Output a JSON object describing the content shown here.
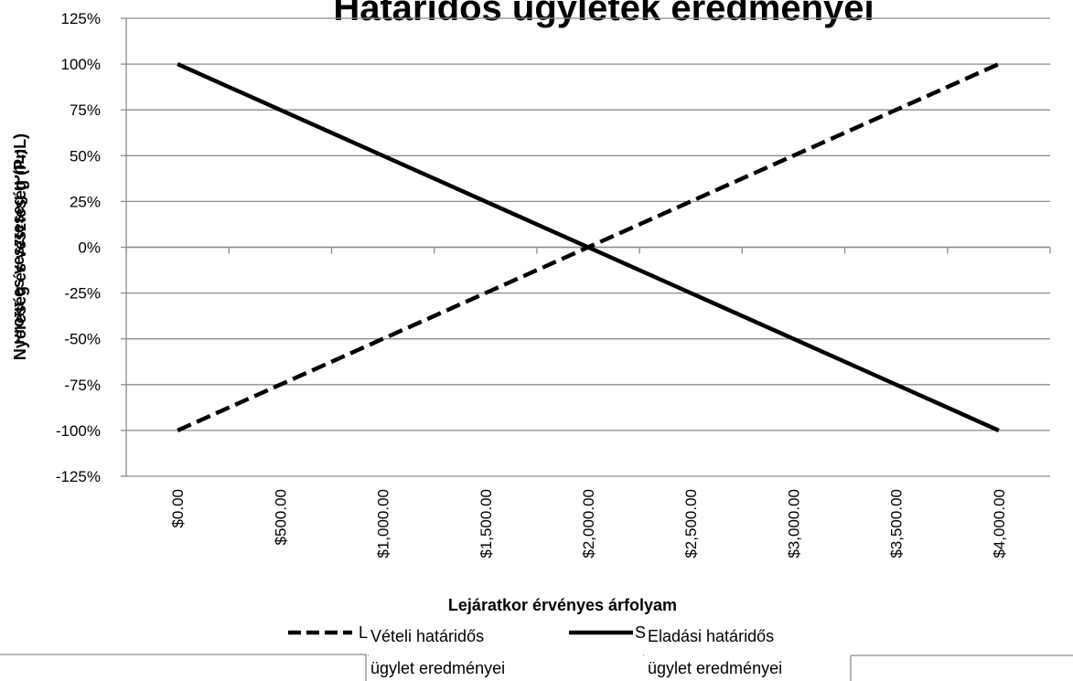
{
  "chart_data": {
    "type": "line",
    "title": "Határidős ügyletek eredményei",
    "xlabel": "Lejáratkor érvényes árfolyam",
    "ylabel": "Nyereség és veszteség (PnL)",
    "ylabel_overlap": "Profit és veszteség (PnL)",
    "x": [
      0,
      500,
      1000,
      1500,
      2000,
      2500,
      3000,
      3500,
      4000
    ],
    "x_tick_labels": [
      "$0.00",
      "$500.00",
      "$1,000.00",
      "$1,500.00",
      "$2,000.00",
      "$2,500.00",
      "$3,000.00",
      "$3,500.00",
      "$4,000.00"
    ],
    "ylim": [
      -125,
      125
    ],
    "y_ticks": [
      -125,
      -100,
      -75,
      -50,
      -25,
      0,
      25,
      50,
      75,
      100,
      125
    ],
    "y_tick_labels": [
      "-125%",
      "-100%",
      "-75%",
      "-50%",
      "-25%",
      "0%",
      "25%",
      "50%",
      "75%",
      "100%",
      "125%"
    ],
    "grid": true,
    "legend_position": "bottom",
    "series": [
      {
        "name": "Vételi határidős ügylet eredményei",
        "name_lines": [
          "Vételi határidős",
          "ügylet eredményei"
        ],
        "legend_prefix": "L",
        "style": "dashed",
        "color": "#000000",
        "points": [
          [
            0,
            -100
          ],
          [
            4000,
            100
          ]
        ]
      },
      {
        "name": "Eladási határidős ügylet eredményei",
        "name_lines": [
          "Eladási határidős",
          "ügylet eredményei"
        ],
        "legend_prefix": "S",
        "style": "solid",
        "color": "#000000",
        "points": [
          [
            0,
            100
          ],
          [
            4000,
            -100
          ]
        ]
      }
    ]
  }
}
